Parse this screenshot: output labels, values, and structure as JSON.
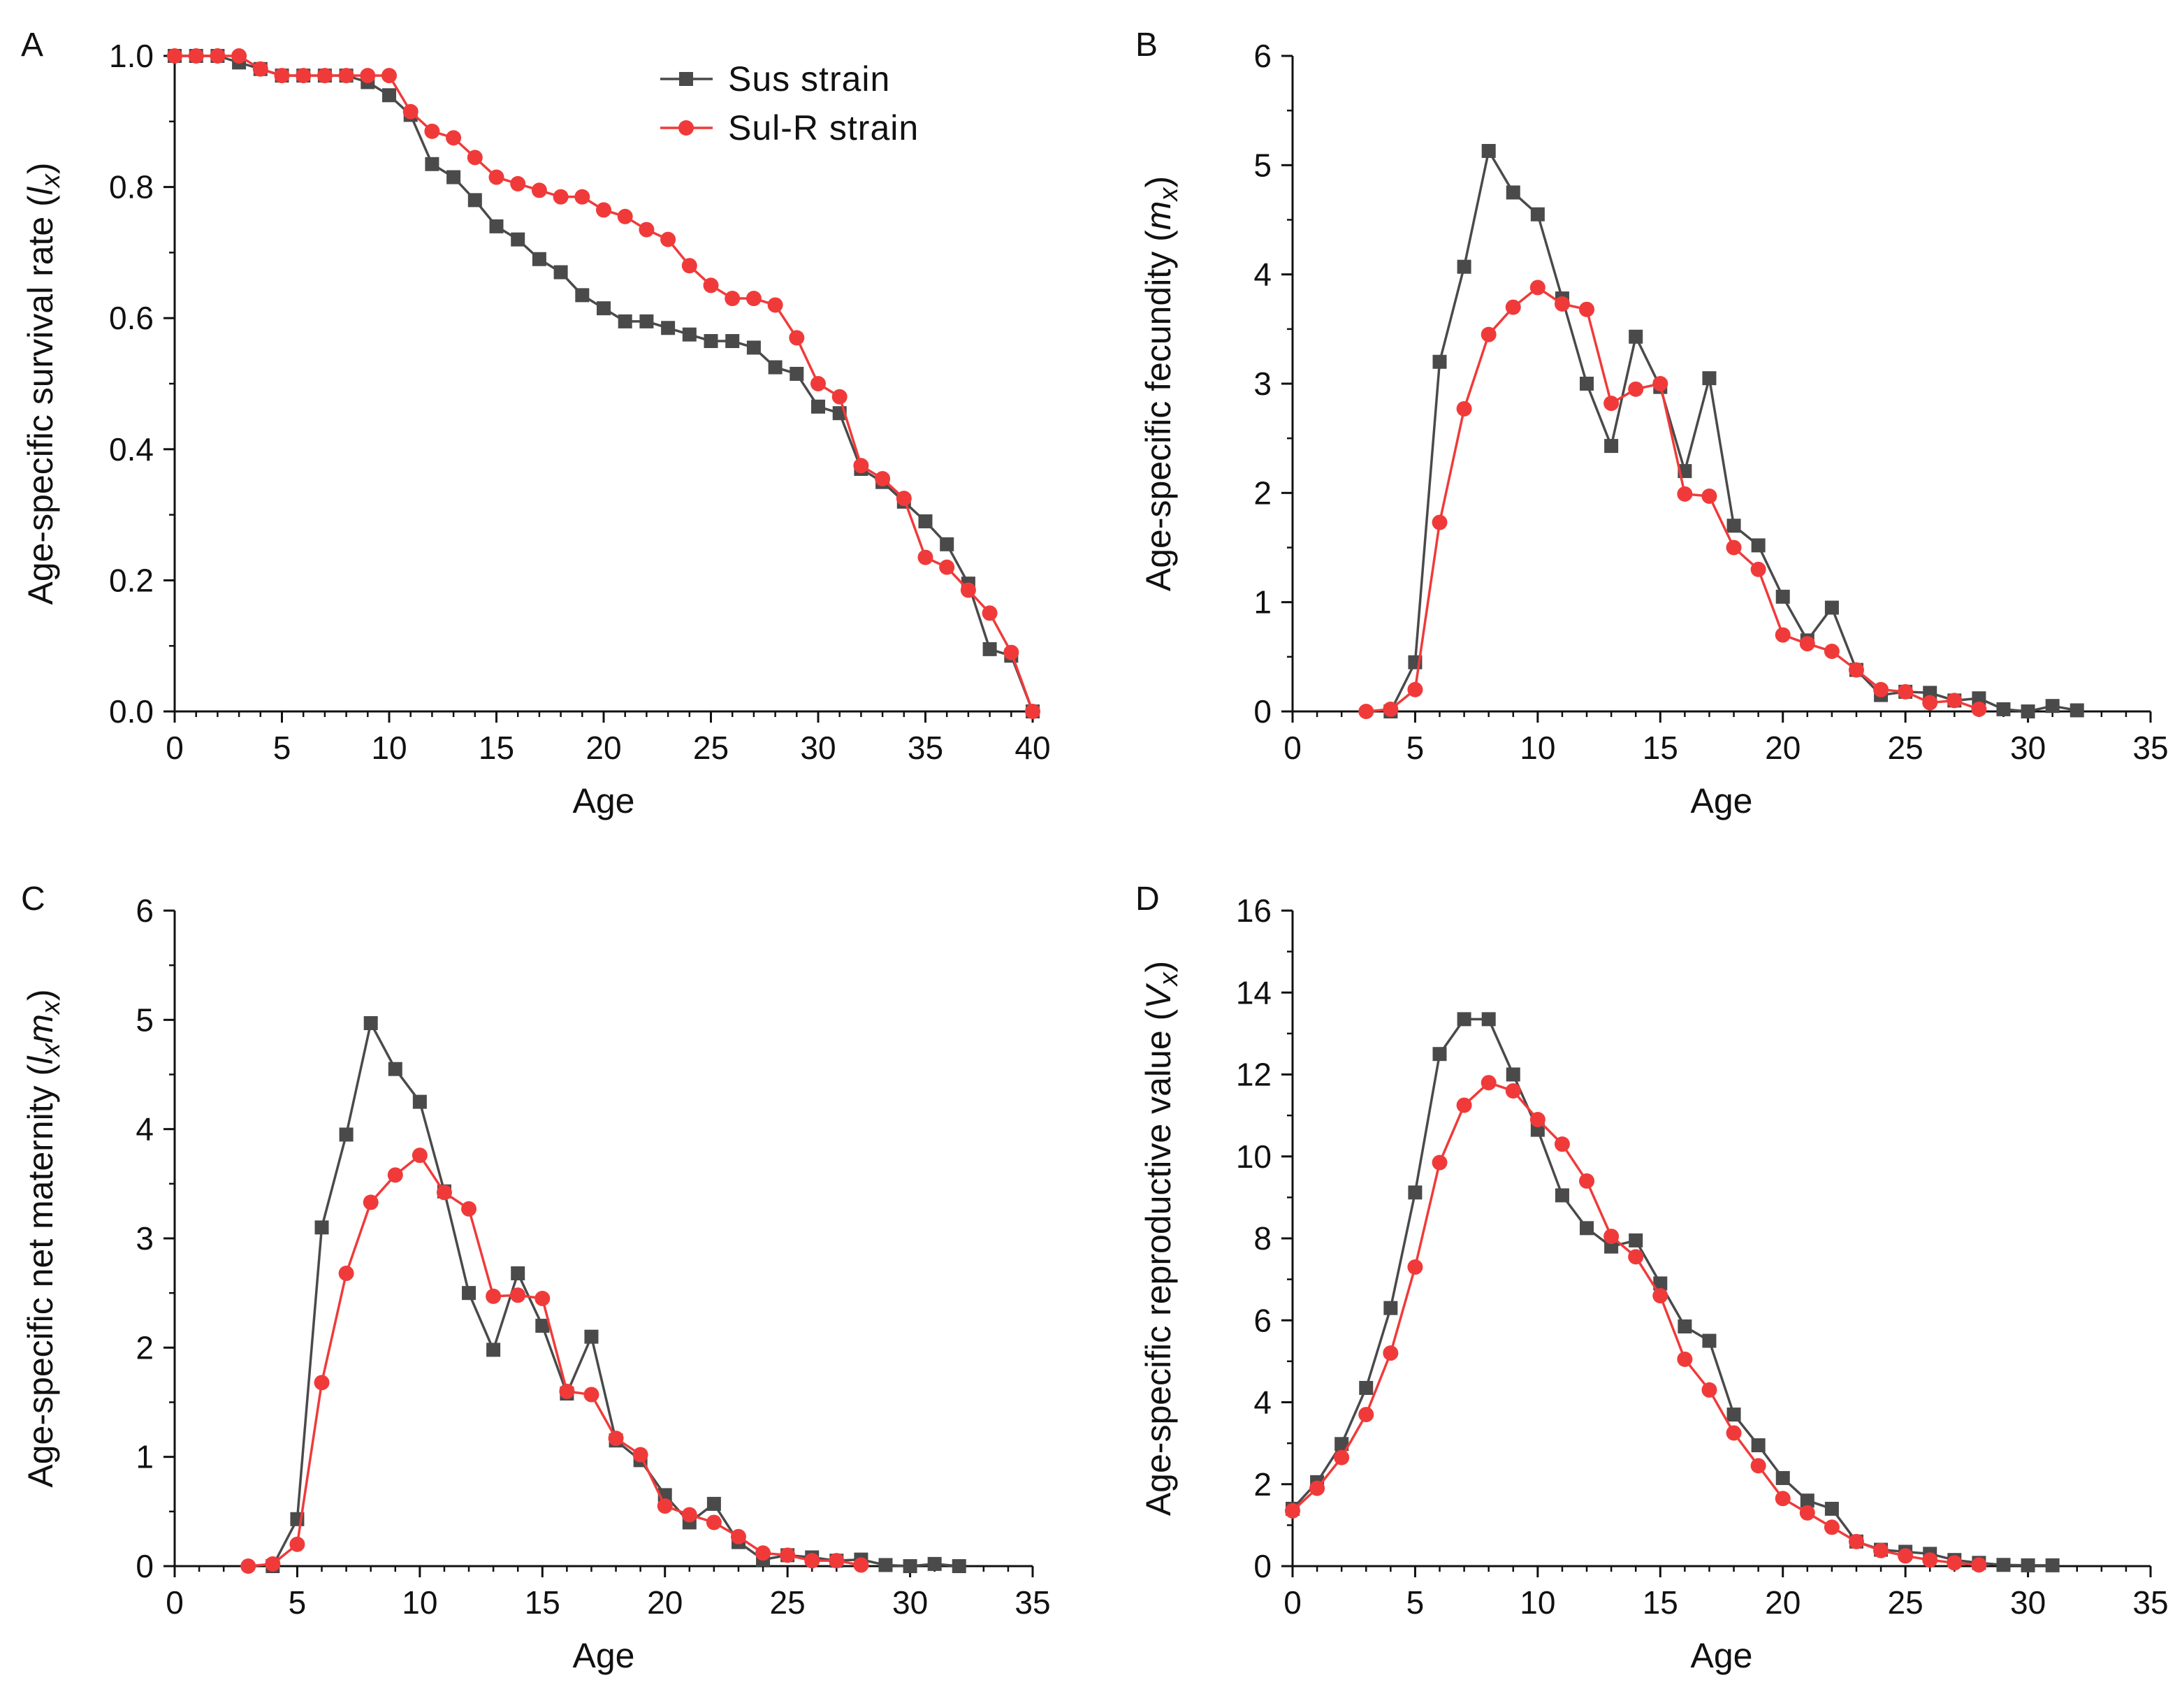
{
  "legend": [
    {
      "name": "Sus strain",
      "color": "#4a4a4a",
      "marker": "square"
    },
    {
      "name": "Sul-R strain",
      "color": "#f03a3a",
      "marker": "circle"
    }
  ],
  "chart_data": [
    {
      "panel": "A",
      "type": "line",
      "title": "",
      "xlabel": "Age",
      "ylabel": "Age-specific survival rate (",
      "ylabel_symbol": "l",
      "ylabel_sub": "x",
      "ylabel_close": ")",
      "xlim": [
        0,
        40
      ],
      "ylim": [
        0,
        1.0
      ],
      "xticks": [
        "0",
        "5",
        "10",
        "15",
        "20",
        "25",
        "30",
        "35",
        "40"
      ],
      "xtick_values": [
        0,
        5,
        10,
        15,
        20,
        25,
        30,
        35,
        40
      ],
      "yticks": [
        "0.0",
        "0.2",
        "0.4",
        "0.6",
        "0.8",
        "1.0"
      ],
      "ytick_values": [
        0,
        0.2,
        0.4,
        0.6,
        0.8,
        1.0
      ],
      "series": [
        {
          "name": "Sus strain",
          "x": [
            0,
            1,
            2,
            3,
            4,
            5,
            6,
            7,
            8,
            9,
            10,
            11,
            12,
            13,
            14,
            15,
            16,
            17,
            18,
            19,
            20,
            21,
            22,
            23,
            24,
            25,
            26,
            27,
            28,
            29,
            30,
            31,
            32,
            33,
            34,
            35,
            36,
            37,
            38,
            39,
            40
          ],
          "values": [
            1.0,
            1.0,
            1.0,
            0.99,
            0.98,
            0.97,
            0.97,
            0.97,
            0.97,
            0.96,
            0.94,
            0.91,
            0.835,
            0.815,
            0.78,
            0.74,
            0.72,
            0.69,
            0.67,
            0.635,
            0.615,
            0.595,
            0.595,
            0.585,
            0.575,
            0.565,
            0.565,
            0.555,
            0.525,
            0.515,
            0.465,
            0.455,
            0.37,
            0.35,
            0.32,
            0.29,
            0.255,
            0.195,
            0.095,
            0.085,
            0.0
          ]
        },
        {
          "name": "Sul-R strain",
          "x": [
            0,
            1,
            2,
            3,
            4,
            5,
            6,
            7,
            8,
            9,
            10,
            11,
            12,
            13,
            14,
            15,
            16,
            17,
            18,
            19,
            20,
            21,
            22,
            23,
            24,
            25,
            26,
            27,
            28,
            29,
            30,
            31,
            32,
            33,
            34,
            35,
            36,
            37,
            38,
            39,
            40
          ],
          "values": [
            1.0,
            1.0,
            1.0,
            1.0,
            0.98,
            0.97,
            0.97,
            0.97,
            0.97,
            0.97,
            0.97,
            0.915,
            0.885,
            0.875,
            0.845,
            0.815,
            0.805,
            0.795,
            0.785,
            0.785,
            0.765,
            0.755,
            0.735,
            0.72,
            0.68,
            0.65,
            0.63,
            0.63,
            0.62,
            0.57,
            0.5,
            0.48,
            0.375,
            0.355,
            0.325,
            0.235,
            0.22,
            0.185,
            0.15,
            0.09,
            0.0
          ]
        }
      ]
    },
    {
      "panel": "B",
      "type": "line",
      "title": "",
      "xlabel": "Age",
      "ylabel": "Age-specific fecundity (",
      "ylabel_symbol": "m",
      "ylabel_sub": "x",
      "ylabel_close": ")",
      "xlim": [
        0,
        35
      ],
      "ylim": [
        0,
        6
      ],
      "xticks": [
        "0",
        "5",
        "10",
        "15",
        "20",
        "25",
        "30",
        "35"
      ],
      "xtick_values": [
        0,
        5,
        10,
        15,
        20,
        25,
        30,
        35
      ],
      "yticks": [
        "0",
        "1",
        "2",
        "3",
        "4",
        "5",
        "6"
      ],
      "ytick_values": [
        0,
        1,
        2,
        3,
        4,
        5,
        6
      ],
      "series": [
        {
          "name": "Sus strain",
          "x": [
            4,
            5,
            6,
            7,
            8,
            9,
            10,
            11,
            12,
            13,
            14,
            15,
            16,
            17,
            18,
            19,
            20,
            21,
            22,
            23,
            24,
            25,
            26,
            27,
            28,
            29,
            30,
            31,
            32
          ],
          "values": [
            0.0,
            0.45,
            3.2,
            4.07,
            5.13,
            4.75,
            4.55,
            3.78,
            3.0,
            2.43,
            3.43,
            2.97,
            2.2,
            3.05,
            1.7,
            1.52,
            1.05,
            0.65,
            0.95,
            0.38,
            0.15,
            0.18,
            0.17,
            0.1,
            0.12,
            0.02,
            0.0,
            0.05,
            0.01
          ]
        },
        {
          "name": "Sul-R strain",
          "x": [
            3,
            4,
            5,
            6,
            7,
            8,
            9,
            10,
            11,
            12,
            13,
            14,
            15,
            16,
            17,
            18,
            19,
            20,
            21,
            22,
            23,
            24,
            25,
            26,
            27,
            28
          ],
          "values": [
            0.0,
            0.02,
            0.2,
            1.73,
            2.77,
            3.45,
            3.7,
            3.88,
            3.73,
            3.68,
            2.82,
            2.95,
            3.0,
            1.99,
            1.97,
            1.5,
            1.3,
            0.7,
            0.62,
            0.55,
            0.38,
            0.2,
            0.18,
            0.08,
            0.1,
            0.02
          ]
        }
      ]
    },
    {
      "panel": "C",
      "type": "line",
      "title": "",
      "xlabel": "Age",
      "ylabel": "Age-specific net maternity (",
      "ylabel_symbol": "l",
      "ylabel_sub": "x",
      "ylabel_symbol2": "m",
      "ylabel_sub2": "x",
      "ylabel_close": ")",
      "xlim": [
        0,
        35
      ],
      "ylim": [
        0,
        6
      ],
      "xticks": [
        "0",
        "5",
        "10",
        "15",
        "20",
        "25",
        "30",
        "35"
      ],
      "xtick_values": [
        0,
        5,
        10,
        15,
        20,
        25,
        30,
        35
      ],
      "yticks": [
        "0",
        "1",
        "2",
        "3",
        "4",
        "5",
        "6"
      ],
      "ytick_values": [
        0,
        1,
        2,
        3,
        4,
        5,
        6
      ],
      "series": [
        {
          "name": "Sus strain",
          "x": [
            4,
            5,
            6,
            7,
            8,
            9,
            10,
            11,
            12,
            13,
            14,
            15,
            16,
            17,
            18,
            19,
            20,
            21,
            22,
            23,
            24,
            25,
            26,
            27,
            28,
            29,
            30,
            31,
            32
          ],
          "values": [
            0.0,
            0.43,
            3.1,
            3.95,
            4.97,
            4.55,
            4.25,
            3.43,
            2.5,
            1.98,
            2.68,
            2.2,
            1.58,
            2.1,
            1.15,
            0.97,
            0.65,
            0.4,
            0.57,
            0.22,
            0.06,
            0.1,
            0.08,
            0.05,
            0.06,
            0.01,
            0.0,
            0.02,
            0.0
          ]
        },
        {
          "name": "Sul-R strain",
          "x": [
            3,
            4,
            5,
            6,
            7,
            8,
            9,
            10,
            11,
            12,
            13,
            14,
            15,
            16,
            17,
            18,
            19,
            20,
            21,
            22,
            23,
            24,
            25,
            26,
            27,
            28
          ],
          "values": [
            0.0,
            0.02,
            0.2,
            1.68,
            2.68,
            3.33,
            3.58,
            3.76,
            3.42,
            3.27,
            2.47,
            2.48,
            2.45,
            1.6,
            1.57,
            1.17,
            1.02,
            0.55,
            0.47,
            0.4,
            0.27,
            0.12,
            0.1,
            0.05,
            0.05,
            0.01
          ]
        }
      ]
    },
    {
      "panel": "D",
      "type": "line",
      "title": "",
      "xlabel": "Age",
      "ylabel": "Age-specific reproductive value (",
      "ylabel_symbol": "V",
      "ylabel_sub": "x",
      "ylabel_close": ")",
      "xlim": [
        0,
        35
      ],
      "ylim": [
        0,
        16
      ],
      "xticks": [
        "0",
        "5",
        "10",
        "15",
        "20",
        "25",
        "30",
        "35"
      ],
      "xtick_values": [
        0,
        5,
        10,
        15,
        20,
        25,
        30,
        35
      ],
      "yticks": [
        "0",
        "2",
        "4",
        "6",
        "8",
        "10",
        "12",
        "14",
        "16"
      ],
      "ytick_values": [
        0,
        2,
        4,
        6,
        8,
        10,
        12,
        14,
        16
      ],
      "series": [
        {
          "name": "Sus strain",
          "x": [
            0,
            1,
            2,
            3,
            4,
            5,
            6,
            7,
            8,
            9,
            10,
            11,
            12,
            13,
            14,
            15,
            16,
            17,
            18,
            19,
            20,
            21,
            22,
            23,
            24,
            25,
            26,
            27,
            28,
            29,
            30,
            31
          ],
          "values": [
            1.4,
            2.05,
            2.98,
            4.35,
            6.3,
            9.12,
            12.5,
            13.35,
            13.35,
            12.0,
            10.65,
            9.05,
            8.25,
            7.8,
            7.95,
            6.9,
            5.85,
            5.5,
            3.7,
            2.95,
            2.15,
            1.6,
            1.4,
            0.6,
            0.4,
            0.35,
            0.3,
            0.15,
            0.08,
            0.03,
            0.02,
            0.02
          ]
        },
        {
          "name": "Sul-R strain",
          "x": [
            0,
            1,
            2,
            3,
            4,
            5,
            6,
            7,
            8,
            9,
            10,
            11,
            12,
            13,
            14,
            15,
            16,
            17,
            18,
            19,
            20,
            21,
            22,
            23,
            24,
            25,
            26,
            27,
            28
          ],
          "values": [
            1.35,
            1.9,
            2.65,
            3.7,
            5.2,
            7.3,
            9.85,
            11.25,
            11.8,
            11.6,
            10.9,
            10.3,
            9.4,
            8.05,
            7.55,
            6.6,
            5.05,
            4.3,
            3.25,
            2.45,
            1.65,
            1.3,
            0.95,
            0.6,
            0.38,
            0.25,
            0.15,
            0.08,
            0.03
          ]
        }
      ]
    }
  ]
}
